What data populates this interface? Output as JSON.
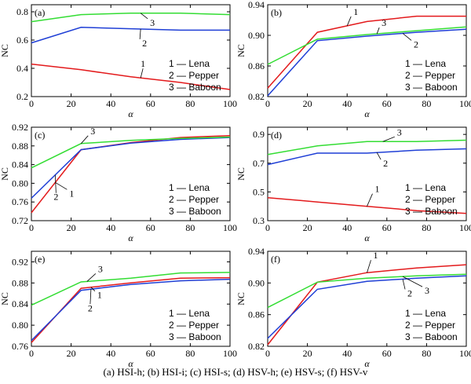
{
  "caption": "(a)  HSI-h; (b) HSI-i; (c) HSI-s; (d) HSV-h; (e) HSV-s; (f) HSV-v",
  "colors": {
    "series1": "#e31a1c",
    "series2": "#1f3fd6",
    "series3": "#33dd33"
  },
  "chart_data": [
    {
      "type": "line",
      "panel_label": "(a)",
      "xlabel": "α",
      "ylabel": "NC",
      "xlim": [
        0,
        100
      ],
      "ylim": [
        0.2,
        0.85
      ],
      "xticks": [
        "0",
        "20",
        "40",
        "60",
        "80",
        "100"
      ],
      "yticks": [
        "0.2",
        "0.4",
        "0.6",
        "0.8"
      ],
      "x": [
        0,
        25,
        50,
        75,
        100
      ],
      "series": [
        {
          "values": [
            0.43,
            0.39,
            0.34,
            0.3,
            0.25
          ]
        },
        {
          "values": [
            0.58,
            0.69,
            0.68,
            0.67,
            0.67
          ]
        },
        {
          "values": [
            0.73,
            0.78,
            0.79,
            0.79,
            0.78
          ]
        }
      ],
      "annotations": [
        "1",
        "2",
        "3"
      ],
      "legend": [
        "1 — Lena",
        "2 — Pepper",
        "3 — Baboon"
      ]
    },
    {
      "type": "line",
      "panel_label": "(b)",
      "xlabel": "α",
      "ylabel": "NC",
      "xlim": [
        0,
        100
      ],
      "ylim": [
        0.82,
        0.94
      ],
      "xticks": [
        "0",
        "20",
        "40",
        "60",
        "80",
        "100"
      ],
      "yticks": [
        "0.82",
        "0.86",
        "0.90",
        "0.94"
      ],
      "x": [
        0,
        25,
        50,
        75,
        100
      ],
      "series": [
        {
          "values": [
            0.831,
            0.904,
            0.918,
            0.925,
            0.925
          ]
        },
        {
          "values": [
            0.821,
            0.893,
            0.899,
            0.904,
            0.908
          ]
        },
        {
          "values": [
            0.862,
            0.895,
            0.901,
            0.906,
            0.911
          ]
        }
      ],
      "annotations": [
        "1",
        "2",
        "3"
      ],
      "legend": [
        "1 — Lena",
        "2 — Pepper",
        "3 — Baboon"
      ]
    },
    {
      "type": "line",
      "panel_label": "(c)",
      "xlabel": "α",
      "ylabel": "NC",
      "xlim": [
        0,
        100
      ],
      "ylim": [
        0.72,
        0.92
      ],
      "xticks": [
        "0",
        "20",
        "40",
        "60",
        "80",
        "100"
      ],
      "yticks": [
        "0.72",
        "0.76",
        "0.80",
        "0.84",
        "0.88",
        "0.92"
      ],
      "x": [
        0,
        25,
        50,
        75,
        100
      ],
      "series": [
        {
          "values": [
            0.737,
            0.872,
            0.887,
            0.898,
            0.902
          ]
        },
        {
          "values": [
            0.768,
            0.872,
            0.886,
            0.894,
            0.898
          ]
        },
        {
          "values": [
            0.833,
            0.885,
            0.892,
            0.896,
            0.899
          ]
        }
      ],
      "annotations": [
        "1",
        "2",
        "3"
      ],
      "legend": [
        "1 — Lena",
        "2 — Pepper",
        "3 — Baboon"
      ]
    },
    {
      "type": "line",
      "panel_label": "(d)",
      "xlabel": "α",
      "ylabel": "NC",
      "xlim": [
        0,
        100
      ],
      "ylim": [
        0.3,
        0.95
      ],
      "xticks": [
        "0",
        "20",
        "40",
        "60",
        "80",
        "100"
      ],
      "yticks": [
        "0.3",
        "0.5",
        "0.7",
        "0.9"
      ],
      "x": [
        0,
        25,
        50,
        75,
        100
      ],
      "series": [
        {
          "values": [
            0.46,
            0.43,
            0.4,
            0.37,
            0.35
          ]
        },
        {
          "values": [
            0.69,
            0.77,
            0.77,
            0.79,
            0.8
          ]
        },
        {
          "values": [
            0.76,
            0.82,
            0.85,
            0.85,
            0.86
          ]
        }
      ],
      "annotations": [
        "1",
        "2",
        "3"
      ],
      "legend": [
        "1 — Lena",
        "2 — Pepper",
        "3 — Baboon"
      ]
    },
    {
      "type": "line",
      "panel_label": "(e)",
      "xlabel": "α",
      "ylabel": "NC",
      "xlim": [
        0,
        100
      ],
      "ylim": [
        0.76,
        0.94
      ],
      "xticks": [
        "0",
        "20",
        "40",
        "60",
        "80",
        "100"
      ],
      "yticks": [
        "0.76",
        "0.80",
        "0.84",
        "0.88",
        "0.92"
      ],
      "x": [
        0,
        25,
        50,
        75,
        100
      ],
      "series": [
        {
          "values": [
            0.767,
            0.87,
            0.88,
            0.889,
            0.89
          ]
        },
        {
          "values": [
            0.771,
            0.866,
            0.877,
            0.884,
            0.887
          ]
        },
        {
          "values": [
            0.838,
            0.882,
            0.889,
            0.899,
            0.9
          ]
        }
      ],
      "annotations": [
        "1",
        "2",
        "3"
      ],
      "legend": [
        "1 — Lena",
        "2 — Pepper",
        "3 — Baboon"
      ]
    },
    {
      "type": "line",
      "panel_label": "(f)",
      "xlabel": "α",
      "ylabel": "NC",
      "xlim": [
        0,
        100
      ],
      "ylim": [
        0.82,
        0.94
      ],
      "xticks": [
        "0",
        "20",
        "40",
        "60",
        "80",
        "100"
      ],
      "yticks": [
        "0.82",
        "0.86",
        "0.90",
        "0.94"
      ],
      "x": [
        0,
        25,
        50,
        75,
        100
      ],
      "series": [
        {
          "values": [
            0.822,
            0.901,
            0.913,
            0.919,
            0.923
          ]
        },
        {
          "values": [
            0.83,
            0.892,
            0.902,
            0.906,
            0.909
          ]
        },
        {
          "values": [
            0.869,
            0.901,
            0.906,
            0.909,
            0.911
          ]
        }
      ],
      "annotations": [
        "1",
        "2",
        "3"
      ],
      "legend": [
        "1 — Lena",
        "2 — Pepper",
        "3 — Baboon"
      ]
    }
  ]
}
